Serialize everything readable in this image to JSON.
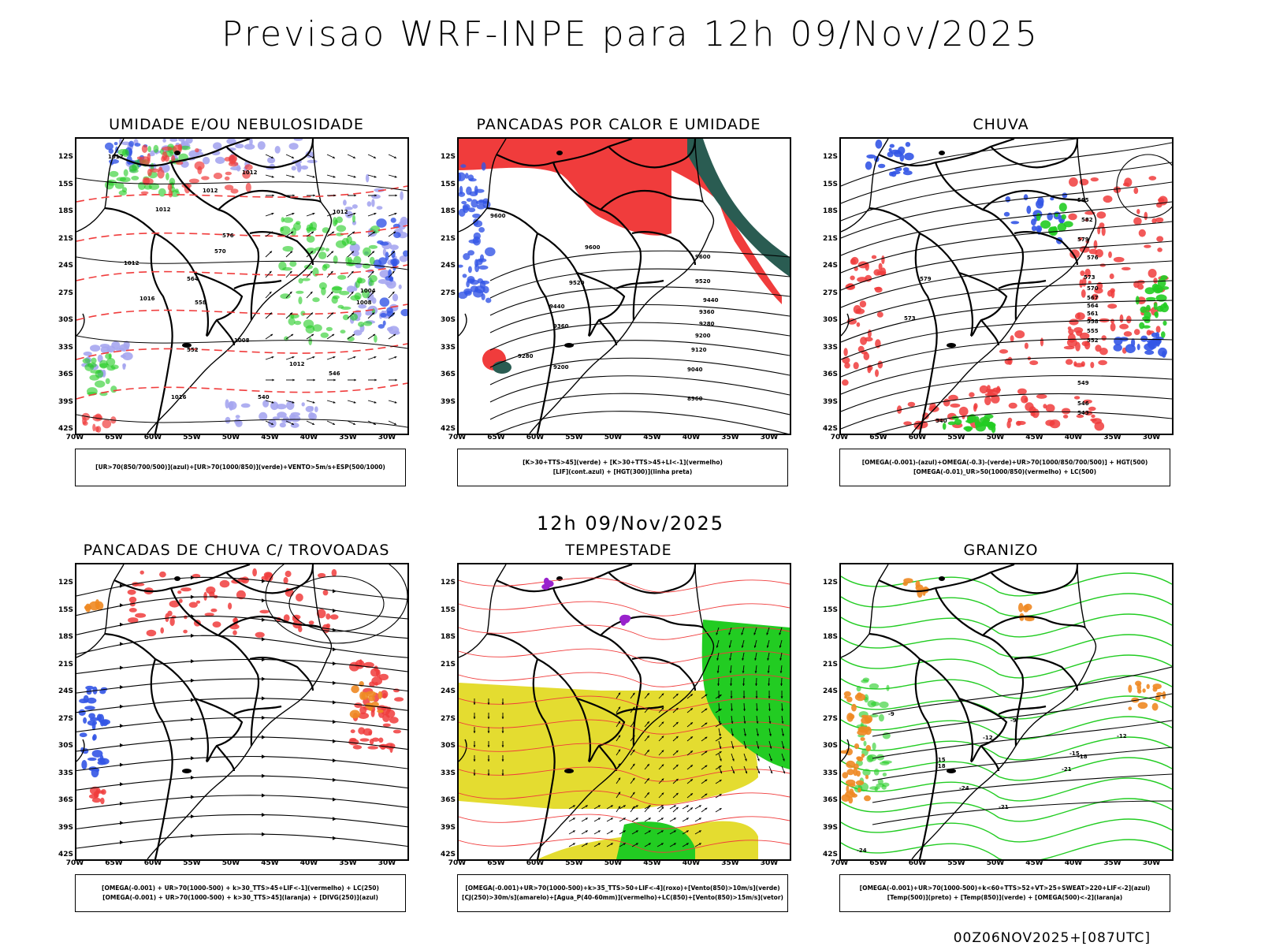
{
  "header": {
    "title": "Previsao WRF-INPE  para 12h 09/Nov/2025"
  },
  "mid_title": "12h 09/Nov/2025",
  "footer": "00Z06NOV2025+[087UTC]",
  "axes": {
    "lat_labels": [
      "12S",
      "15S",
      "18S",
      "21S",
      "24S",
      "27S",
      "30S",
      "33S",
      "36S",
      "39S",
      "42S"
    ],
    "lon_labels": [
      "70W",
      "65W",
      "60W",
      "55W",
      "50W",
      "45W",
      "40W",
      "35W",
      "30W"
    ]
  },
  "colors": {
    "blue": "#3355e6",
    "lavender": "#a6a6f0",
    "green": "#22cc22",
    "red": "#f03c3c",
    "darkteal": "#2a5c52",
    "yellow": "#e4dc30",
    "orange": "#ee8822",
    "purple": "#9922cc"
  },
  "panels": [
    {
      "title": "UMIDADE E/OU NEBULOSIDADE",
      "legend": [
        "[UR>70(850/700/500)](azul)+[UR>70(1000/850)](verde)+VENTO>5m/s+ESP(500/1000)"
      ],
      "contour_labels": [
        "1012",
        "1012",
        "1012",
        "1012",
        "1016",
        "1016",
        "1012",
        "1008",
        "1004",
        "1008",
        "1012",
        "1012",
        "546",
        "540",
        "552",
        "558",
        "564",
        "570",
        "576"
      ]
    },
    {
      "title": "PANCADAS POR CALOR E UMIDADE",
      "legend": [
        "[K>30+TTS>45](verde) + [K>30+TTS>45+LI<-1](vermelho)",
        "[LIF](cont.azul) + [HGT(300)](linha preta)"
      ],
      "contour_labels": [
        "9600",
        "9600",
        "9520",
        "9440",
        "9360",
        "9600",
        "9520",
        "9440",
        "9360",
        "9280",
        "9200",
        "9120",
        "9040",
        "8960",
        "9280",
        "9200"
      ]
    },
    {
      "title": "CHUVA",
      "legend": [
        "[OMEGA(-0.001)-(azul)+OMEGA(-0.3)-(verde)+UR>70(1000/850/700/500)] + HGT(500)",
        "[OMEGA(-0.01)_UR>50(1000/850)(vermelho) + LC(500)"
      ],
      "contour_labels": [
        "585",
        "582",
        "579",
        "576",
        "573",
        "570",
        "567",
        "564",
        "561",
        "558",
        "555",
        "552",
        "549",
        "546",
        "543",
        "540",
        "579",
        "573"
      ]
    },
    {
      "title": "PANCADAS DE CHUVA C/ TROVOADAS",
      "legend": [
        "[OMEGA(-0.001) + UR>70(1000-500) + k>30_TTS>45+LIF<-1](vermelho) + LC(250)",
        "[OMEGA(-0.001) + UR>70(1000-500) + k>30_TTS>45](laranja) + [DIVG(250)](azul)"
      ],
      "contour_labels": []
    },
    {
      "title": "TEMPESTADE",
      "legend": [
        "[OMEGA(-0.001)+UR>70(1000-500)+k>35_TTS>50+LIF<-4](roxo)+[Vento(850)>10m/s](verde)",
        "[CJ(250)>30m/s](amarelo)+[Agua_P(40-60mm)](vermelho)+LC(850)+[Vento(850)>15m/s](vetor)"
      ],
      "contour_labels": []
    },
    {
      "title": "GRANIZO",
      "legend": [
        "[OMEGA(-0.001)+UR>70(1000-500)+k<60+TTS>52+VT>25+SWEAT>220+LIF<-2](azul)",
        "[Temp(500)](preto) + [Temp(850)](verde) + [OMEGA(500)<-2](laranja)"
      ],
      "contour_labels": [
        "-9",
        "-12",
        "-15",
        "-18",
        "-21",
        "-24",
        "-9",
        "-12",
        "-15",
        "-18",
        "-21",
        "-24"
      ]
    }
  ]
}
